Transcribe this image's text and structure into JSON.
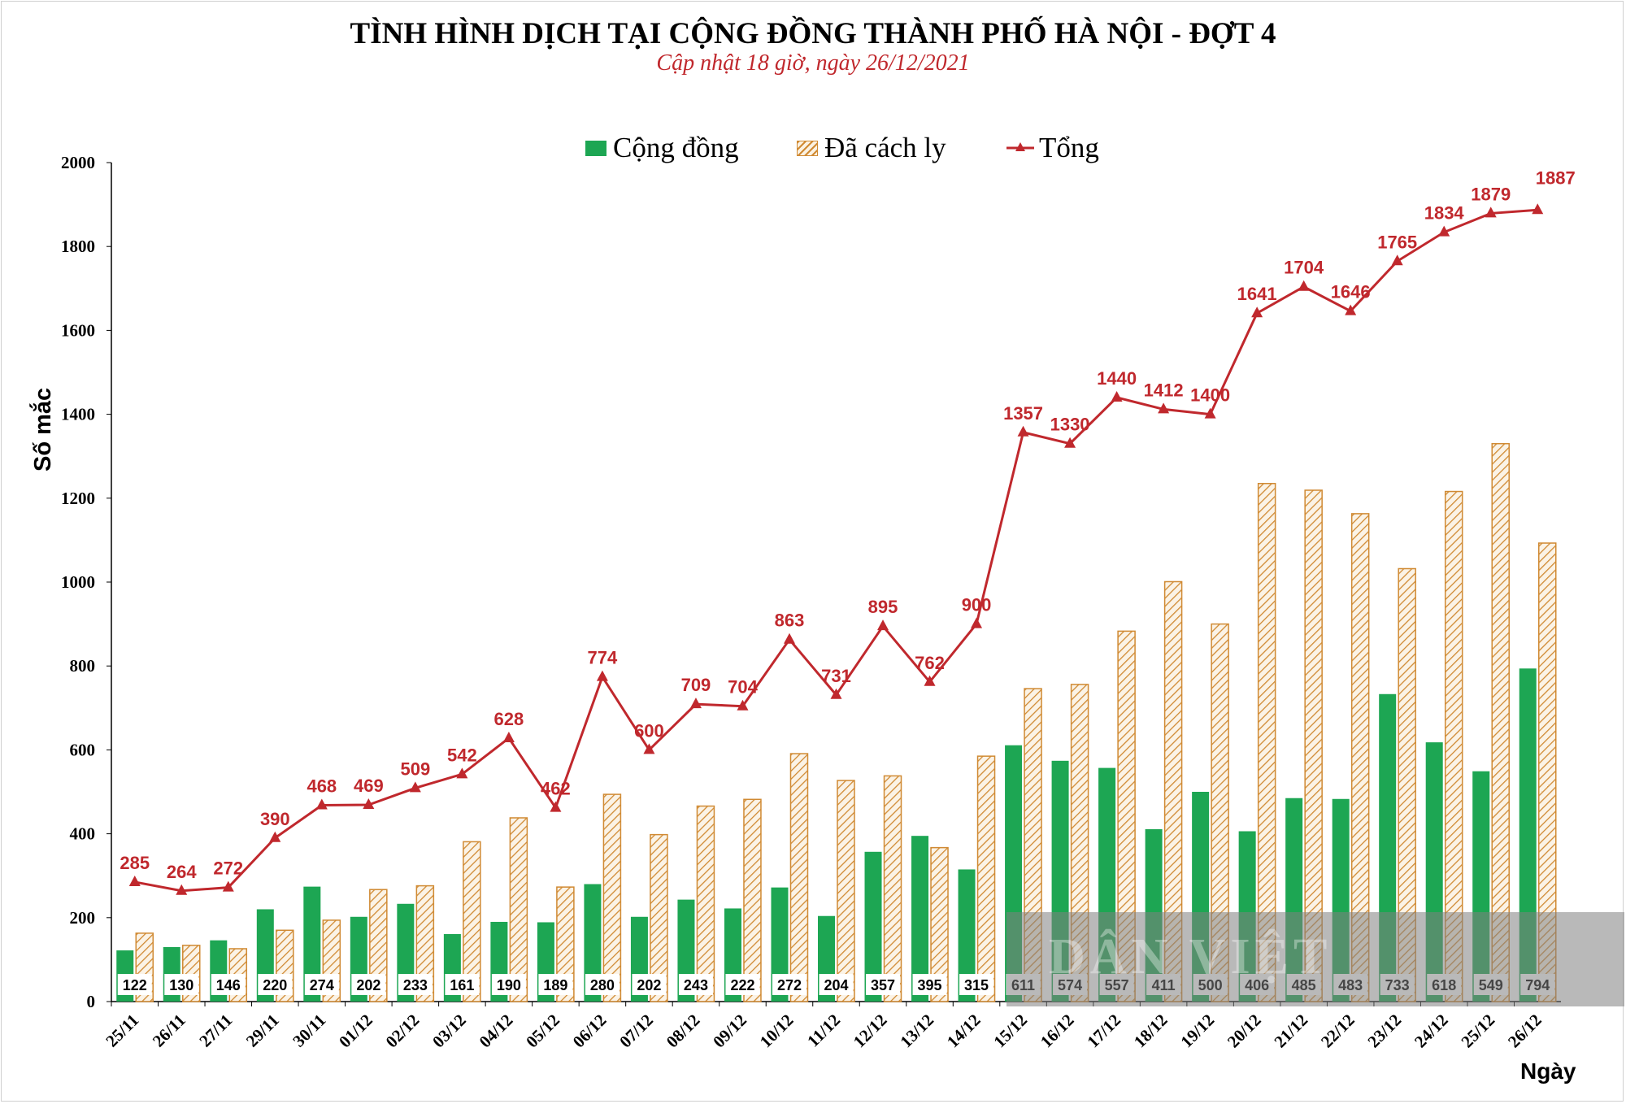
{
  "title": "TÌNH HÌNH DỊCH TẠI CỘNG ĐỒNG THÀNH PHỐ HÀ NỘI - ĐỢT 4",
  "subtitle": "Cập nhật 18 giờ, ngày 26/12/2021",
  "watermark": "DÂN VIỆT",
  "colors": {
    "community": "#1da653",
    "quarantine": "#d08a33",
    "total": "#c0282d",
    "axis": "#000000"
  },
  "chart_data": {
    "type": "bar",
    "title": "TÌNH HÌNH DỊCH TẠI CỘNG ĐỒNG THÀNH PHỐ HÀ NỘI - ĐỢT 4",
    "xlabel": "Ngày",
    "ylabel": "Số mắc",
    "ylim": [
      0,
      2000
    ],
    "yticks": [
      0,
      200,
      400,
      600,
      800,
      1000,
      1200,
      1400,
      1600,
      1800,
      2000
    ],
    "grid": false,
    "legend_position": "top-center",
    "categories": [
      "25/11",
      "26/11",
      "27/11",
      "29/11",
      "30/11",
      "01/12",
      "02/12",
      "03/12",
      "04/12",
      "05/12",
      "06/12",
      "07/12",
      "08/12",
      "09/12",
      "10/12",
      "11/12",
      "12/12",
      "13/12",
      "14/12",
      "15/12",
      "16/12",
      "17/12",
      "18/12",
      "19/12",
      "20/12",
      "21/12",
      "22/12",
      "23/12",
      "24/12",
      "25/12",
      "26/12"
    ],
    "series": [
      {
        "name": "Cộng đồng",
        "type": "bar",
        "values": [
          122,
          130,
          146,
          220,
          274,
          202,
          233,
          161,
          190,
          189,
          280,
          202,
          243,
          222,
          272,
          204,
          357,
          395,
          315,
          611,
          574,
          557,
          411,
          500,
          406,
          485,
          483,
          733,
          618,
          549,
          794
        ]
      },
      {
        "name": "Đã cách ly",
        "type": "bar",
        "values": [
          163,
          134,
          126,
          170,
          194,
          267,
          276,
          381,
          438,
          273,
          494,
          398,
          466,
          482,
          591,
          527,
          538,
          367,
          585,
          746,
          756,
          883,
          1001,
          900,
          1235,
          1219,
          1163,
          1032,
          1216,
          1330,
          1093
        ]
      },
      {
        "name": "Tổng",
        "type": "line",
        "values": [
          285,
          264,
          272,
          390,
          468,
          469,
          509,
          542,
          628,
          462,
          774,
          600,
          709,
          704,
          863,
          731,
          895,
          762,
          900,
          1357,
          1330,
          1440,
          1412,
          1400,
          1641,
          1704,
          1646,
          1765,
          1834,
          1879,
          1887
        ]
      }
    ]
  }
}
